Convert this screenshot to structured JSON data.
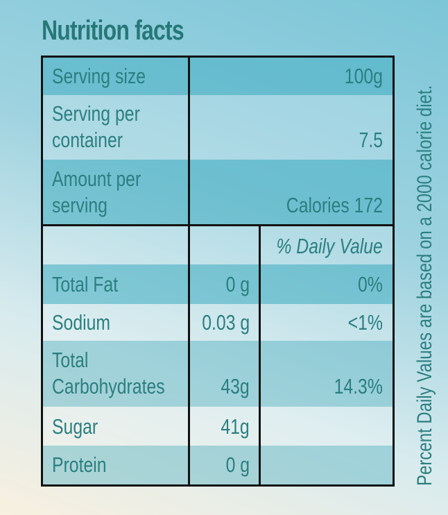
{
  "title": "Nutrition facts",
  "top_rows": [
    {
      "label": "Serving size",
      "value": "100g"
    },
    {
      "label": "Serving per container",
      "label_lines": [
        "Serving per",
        "container"
      ],
      "value": "7.5"
    },
    {
      "label": "Amount per serving",
      "label_lines": [
        "Amount per",
        "serving"
      ],
      "value": "Calories 172"
    }
  ],
  "daily_value_header": "% Daily Value",
  "nutrients": [
    {
      "name": "Total Fat",
      "amount": "0 g",
      "dv": "0%"
    },
    {
      "name": "Sodium",
      "amount": "0.03 g",
      "dv": "<1%"
    },
    {
      "name": "Total Carbohydrates",
      "name_lines": [
        "Total",
        "Carbohydrates"
      ],
      "amount": "43g",
      "dv": "14.3%"
    },
    {
      "name": "Sugar",
      "amount": "41g",
      "dv": ""
    },
    {
      "name": "Protein",
      "amount": "0 g",
      "dv": ""
    }
  ],
  "footnote": "Percent Daily Values are based on a 2000 calorie diet."
}
